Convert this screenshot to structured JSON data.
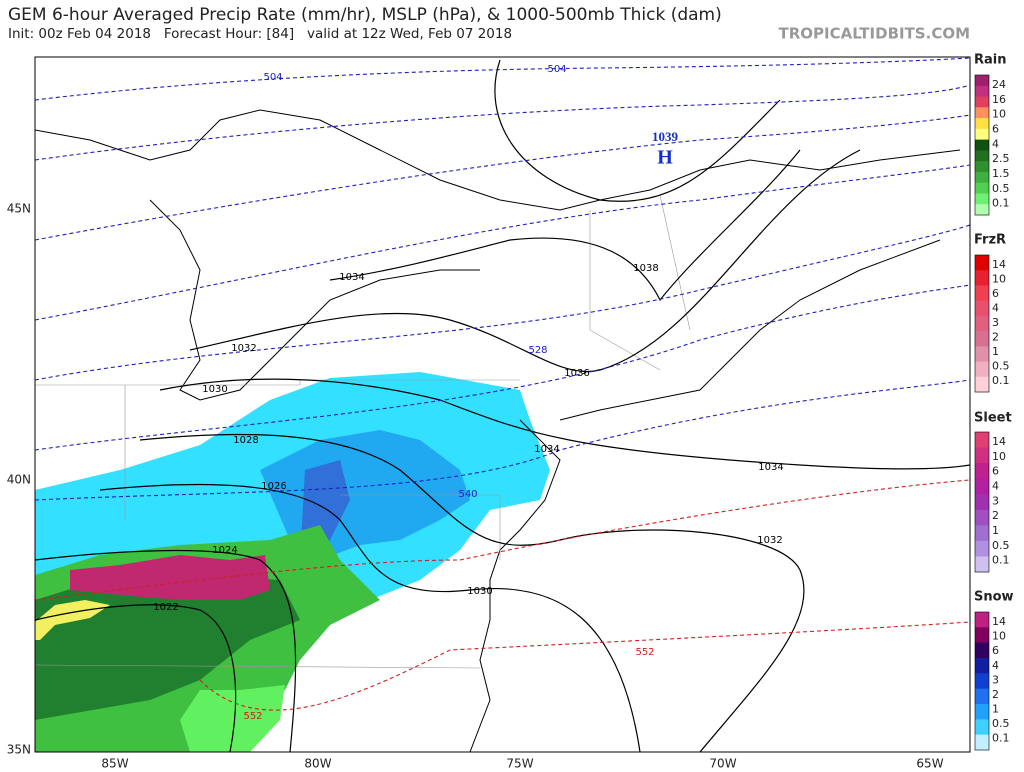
{
  "header": {
    "title": "GEM 6-hour Averaged Precip Rate (mm/hr), MSLP (hPa), & 1000-500mb Thick (dam)",
    "subtitle": "Init: 00z Feb 04 2018   Forecast Hour: [84]   valid at 12z Wed, Feb 07 2018",
    "brand": "TROPICALTIDBITS.COM"
  },
  "axes": {
    "lat_labels": [
      "45N",
      "40N",
      "35N"
    ],
    "lon_labels": [
      "85W",
      "80W",
      "75W",
      "70W",
      "65W"
    ]
  },
  "map": {
    "high": {
      "pressure": "1039",
      "letter": "H"
    },
    "thickness_labels": [
      "504",
      "504",
      "528",
      "540",
      "552",
      "552"
    ],
    "isobar_labels": [
      "1034",
      "1032",
      "1030",
      "1028",
      "1026",
      "1024",
      "1022",
      "1038",
      "1036",
      "1034",
      "1034",
      "1032",
      "1030"
    ]
  },
  "legends": [
    {
      "title": "Rain",
      "labels": [
        "24",
        "16",
        "10",
        "6",
        "4",
        "2.5",
        "1.5",
        "0.5",
        "0.1"
      ],
      "colors": [
        "#a0206e",
        "#c0307e",
        "#e04060",
        "#ff9060",
        "#ffe040",
        "#ffff80",
        "#105010",
        "#207020",
        "#309030",
        "#40b040",
        "#50d050",
        "#70f070",
        "#b0ffb0"
      ]
    },
    {
      "title": "FrzR",
      "labels": [
        "14",
        "10",
        "6",
        "4",
        "3",
        "2",
        "1",
        "0.5",
        "0.1"
      ],
      "colors": [
        "#e00000",
        "#e82030",
        "#f04050",
        "#e85070",
        "#e06080",
        "#d87090",
        "#e090a8",
        "#f0b0c0",
        "#ffd0d8"
      ]
    },
    {
      "title": "Sleet",
      "labels": [
        "14",
        "10",
        "6",
        "4",
        "3",
        "2",
        "1",
        "0.5",
        "0.1"
      ],
      "colors": [
        "#e04070",
        "#d03080",
        "#c02090",
        "#b020a0",
        "#a030b0",
        "#a050c0",
        "#a070d0",
        "#b090e0",
        "#d0c0f0"
      ]
    },
    {
      "title": "Snow",
      "labels": [
        "14",
        "10",
        "6",
        "4",
        "3",
        "2",
        "1",
        "0.5",
        "0.1"
      ],
      "colors": [
        "#c02080",
        "#800060",
        "#300060",
        "#1020a0",
        "#1040d0",
        "#2070f0",
        "#20a0ff",
        "#40d0ff",
        "#c0f0ff"
      ]
    }
  ]
}
